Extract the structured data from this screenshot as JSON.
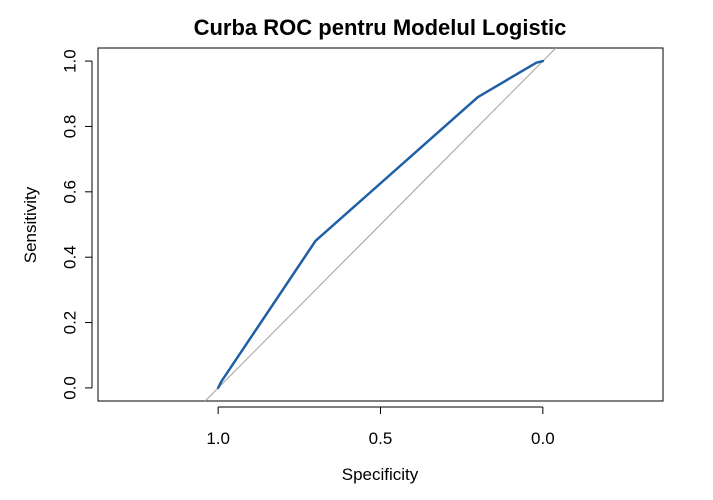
{
  "chart_data": {
    "type": "line",
    "title": "Curba ROC pentru Modelul Logistic",
    "xlabel": "Specificity",
    "ylabel": "Sensitivity",
    "xlim": [
      1.37,
      -0.37
    ],
    "ylim": [
      -0.04,
      1.04
    ],
    "x_reversed": true,
    "xticks": [
      1.0,
      0.5,
      0.0
    ],
    "xtick_labels": [
      "1.0",
      "0.5",
      "0.0"
    ],
    "yticks": [
      0.0,
      0.2,
      0.4,
      0.6,
      0.8,
      1.0
    ],
    "ytick_labels": [
      "0.0",
      "0.2",
      "0.4",
      "0.6",
      "0.8",
      "1.0"
    ],
    "grid": false,
    "reference_line": {
      "from": [
        1.0,
        0.0
      ],
      "to": [
        0.0,
        1.0
      ],
      "color": "#a0a0a0"
    },
    "series": [
      {
        "color": "#1f5fa8",
        "x": [
          1.0,
          0.99,
          0.7,
          0.2,
          0.02,
          0.0
        ],
        "y": [
          0.0,
          0.02,
          0.45,
          0.89,
          0.995,
          1.0
        ]
      }
    ]
  }
}
